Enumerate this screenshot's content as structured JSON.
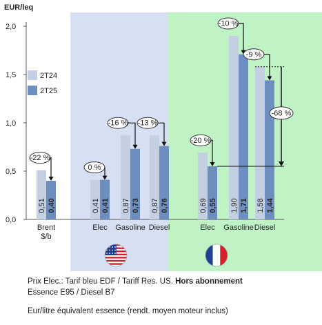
{
  "chart_data": {
    "type": "bar",
    "ylabel": "EUR/leq",
    "ylim": [
      0,
      2.0
    ],
    "yticks": [
      "0,0",
      "0,5",
      "1,0",
      "1,5",
      "2,0"
    ],
    "categories": [
      "Brent $/b",
      "Elec",
      "Gasoline",
      "Diesel",
      "Elec",
      "Gasoline",
      "Diesel"
    ],
    "category_labels": [
      {
        "line1": "Brent",
        "line2": "$/b"
      },
      {
        "line1": "Elec",
        "line2": ""
      },
      {
        "line1": "Gasoline",
        "line2": ""
      },
      {
        "line1": "Diesel",
        "line2": ""
      },
      {
        "line1": "Elec",
        "line2": ""
      },
      {
        "line1": "Gasoline",
        "line2": ""
      },
      {
        "line1": "Diesel",
        "line2": ""
      }
    ],
    "series": [
      {
        "name": "2T24",
        "color": "#c5cfe2",
        "values": [
          0.51,
          0.41,
          0.87,
          0.87,
          0.69,
          1.9,
          1.58
        ],
        "labels": [
          "0,51",
          "0,41",
          "0,87",
          "0,87",
          "0,69",
          "1,90",
          "1,58"
        ]
      },
      {
        "name": "2T25",
        "color": "#6d8ebf",
        "values": [
          0.4,
          0.41,
          0.73,
          0.76,
          0.55,
          1.71,
          1.44
        ],
        "labels": [
          "0,40",
          "0,41",
          "0,73",
          "0,76",
          "0,55",
          "1,71",
          "1,44"
        ]
      }
    ],
    "changes": [
      "-22 %",
      "0 %",
      "-16 %",
      "-13 %",
      "-20 %",
      "-10 %",
      "-9 %"
    ],
    "big_change": "-68 %",
    "legend_placement": "top-left",
    "regions": [
      {
        "name": "US",
        "color": "#d7e0f3",
        "flag": "us-flag"
      },
      {
        "name": "FR",
        "color": "#bff2c5",
        "flag": "fr-flag"
      }
    ],
    "grid": false
  },
  "footnotes": {
    "line1_regular": "Prix Elec.: Tarif bleu EDF / Tariff Res. US. ",
    "line1_bold": "Hors abonnement",
    "line2": "Essence E95 / Diesel B7",
    "line3": "Eur/litre équivalent essence (rendt. moyen moteur inclus)"
  }
}
